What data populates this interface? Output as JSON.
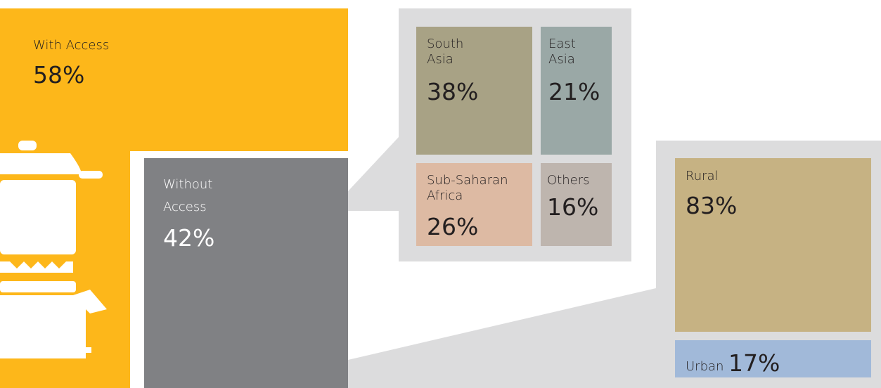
{
  "with_access": {
    "label": "With Access",
    "value": "58%"
  },
  "without_access": {
    "label": [
      "Without",
      "Access"
    ],
    "value": "42%"
  },
  "regions": [
    {
      "label": [
        "South",
        "Asia"
      ],
      "value": "38%"
    },
    {
      "label": [
        "East",
        "Asia"
      ],
      "value": "21%"
    },
    {
      "label": [
        "Sub-Saharan",
        "Africa"
      ],
      "value": "26%"
    },
    {
      "label": [
        "Others"
      ],
      "value": "16%"
    }
  ],
  "area": [
    {
      "label": "Rural",
      "value": "83%"
    },
    {
      "label": "Urban",
      "value": "17%"
    }
  ]
}
